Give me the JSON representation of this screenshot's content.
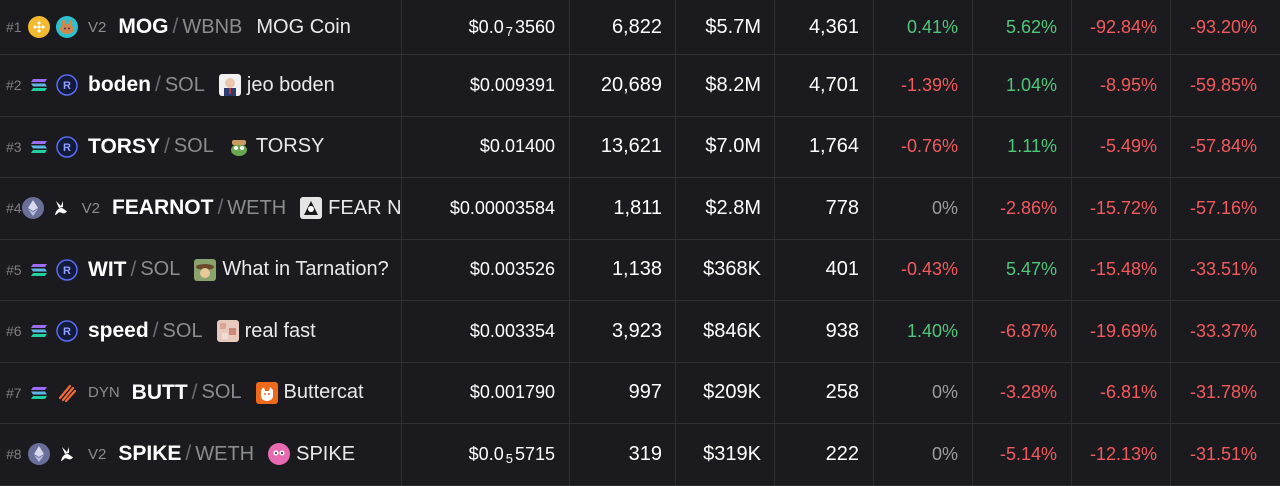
{
  "colors": {
    "background": "#1b1b1f",
    "positive": "#4fc77b",
    "negative": "#f3595d",
    "neutral": "#9b9ca2",
    "separator": "#2e2f35"
  },
  "rows": [
    {
      "rank": "#1",
      "chain": "bnb-chain-icon",
      "dex": "pancakeswap-icon",
      "version": "V2",
      "symbol": "MOG",
      "quote": "WBNB",
      "avatar": "",
      "name": "MOG Coin",
      "price_prefix": "$0.0",
      "price_sub": "7",
      "price_rest": "3560",
      "txns": "6,822",
      "volume": "$5.7M",
      "makers": "4,361",
      "p1": "0.41%",
      "p1c": "pos",
      "p2": "5.62%",
      "p2c": "pos",
      "p3": "-92.84%",
      "p3c": "neg",
      "p4": "-93.20%",
      "p4c": "neg"
    },
    {
      "rank": "#2",
      "chain": "solana-icon",
      "dex": "raydium-icon",
      "version": "",
      "symbol": "boden",
      "quote": "SOL",
      "avatar": "jeo-boden-avatar",
      "name": "jeo boden",
      "price": "$0.009391",
      "txns": "20,689",
      "volume": "$8.2M",
      "makers": "4,701",
      "p1": "-1.39%",
      "p1c": "neg",
      "p2": "1.04%",
      "p2c": "pos",
      "p3": "-8.95%",
      "p3c": "neg",
      "p4": "-59.85%",
      "p4c": "neg"
    },
    {
      "rank": "#3",
      "chain": "solana-icon",
      "dex": "raydium-icon",
      "version": "",
      "symbol": "TORSY",
      "quote": "SOL",
      "avatar": "torsy-avatar",
      "name": "TORSY",
      "price": "$0.01400",
      "txns": "13,621",
      "volume": "$7.0M",
      "makers": "1,764",
      "p1": "-0.76%",
      "p1c": "neg",
      "p2": "1.11%",
      "p2c": "pos",
      "p3": "-5.49%",
      "p3c": "neg",
      "p4": "-57.84%",
      "p4c": "neg"
    },
    {
      "rank": "#4",
      "chain": "ethereum-icon",
      "dex": "uniswap-icon",
      "version": "V2",
      "symbol": "FEARNOT",
      "quote": "WETH",
      "avatar": "fearnot-avatar",
      "name": "FEAR N",
      "price": "$0.00003584",
      "txns": "1,811",
      "volume": "$2.8M",
      "makers": "778",
      "p1": "0%",
      "p1c": "neu",
      "p2": "-2.86%",
      "p2c": "neg",
      "p3": "-15.72%",
      "p3c": "neg",
      "p4": "-57.16%",
      "p4c": "neg"
    },
    {
      "rank": "#5",
      "chain": "solana-icon",
      "dex": "raydium-icon",
      "version": "",
      "symbol": "WIT",
      "quote": "SOL",
      "avatar": "wit-avatar",
      "name": "What in Tarnation?",
      "price": "$0.003526",
      "txns": "1,138",
      "volume": "$368K",
      "makers": "401",
      "p1": "-0.43%",
      "p1c": "neg",
      "p2": "5.47%",
      "p2c": "pos",
      "p3": "-15.48%",
      "p3c": "neg",
      "p4": "-33.51%",
      "p4c": "neg"
    },
    {
      "rank": "#6",
      "chain": "solana-icon",
      "dex": "raydium-icon",
      "version": "",
      "symbol": "speed",
      "quote": "SOL",
      "avatar": "speed-avatar",
      "name": "real fast",
      "price": "$0.003354",
      "txns": "3,923",
      "volume": "$846K",
      "makers": "938",
      "p1": "1.40%",
      "p1c": "pos",
      "p2": "-6.87%",
      "p2c": "neg",
      "p3": "-19.69%",
      "p3c": "neg",
      "p4": "-33.37%",
      "p4c": "neg"
    },
    {
      "rank": "#7",
      "chain": "solana-icon",
      "dex": "meteora-icon",
      "version": "DYN",
      "symbol": "BUTT",
      "quote": "SOL",
      "avatar": "buttercat-avatar",
      "name": "Buttercat",
      "price": "$0.001790",
      "txns": "997",
      "volume": "$209K",
      "makers": "258",
      "p1": "0%",
      "p1c": "neu",
      "p2": "-3.28%",
      "p2c": "neg",
      "p3": "-6.81%",
      "p3c": "neg",
      "p4": "-31.78%",
      "p4c": "neg"
    },
    {
      "rank": "#8",
      "chain": "ethereum-icon",
      "dex": "uniswap-icon",
      "version": "V2",
      "symbol": "SPIKE",
      "quote": "WETH",
      "avatar": "spike-avatar",
      "name": "SPIKE",
      "price_prefix": "$0.0",
      "price_sub": "5",
      "price_rest": "5715",
      "txns": "319",
      "volume": "$319K",
      "makers": "222",
      "p1": "0%",
      "p1c": "neu",
      "p2": "-5.14%",
      "p2c": "neg",
      "p3": "-12.13%",
      "p3c": "neg",
      "p4": "-31.51%",
      "p4c": "neg"
    }
  ]
}
